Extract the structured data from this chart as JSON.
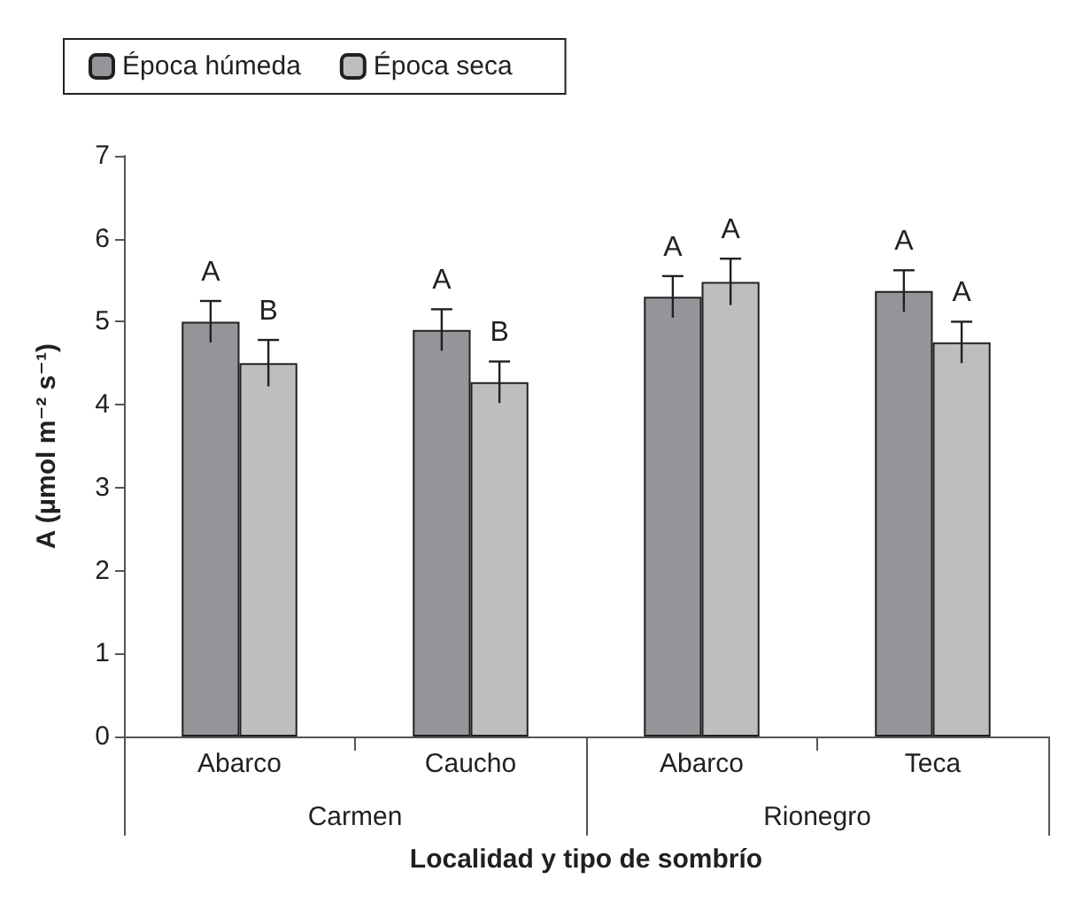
{
  "chart_data": {
    "type": "bar",
    "xlabel": "Localidad y tipo de sombrío",
    "ylabel": "A (μmol m⁻² s⁻¹)",
    "categories": [
      "Abarco",
      "Caucho",
      "Abarco",
      "Teca"
    ],
    "series": [
      {
        "name": "Época húmeda",
        "color": "#939598",
        "values": [
          5.0,
          4.9,
          5.3,
          5.37
        ],
        "errors": [
          0.25,
          0.25,
          0.25,
          0.25
        ],
        "value_labels": [
          "A",
          "A",
          "A",
          "A"
        ]
      },
      {
        "name": "Época seca",
        "color": "#bcbec0",
        "values": [
          4.5,
          4.27,
          5.48,
          4.75
        ],
        "errors": [
          0.28,
          0.25,
          0.28,
          0.25
        ],
        "value_labels": [
          "B",
          "B",
          "A",
          "A"
        ]
      }
    ],
    "annotations": [
      "Carmen",
      "Rionegro"
    ],
    "ylim": [
      0,
      7
    ],
    "yticks": [
      0,
      1,
      2,
      3,
      4,
      5,
      6,
      7
    ],
    "grid": false,
    "legend": "top left"
  }
}
